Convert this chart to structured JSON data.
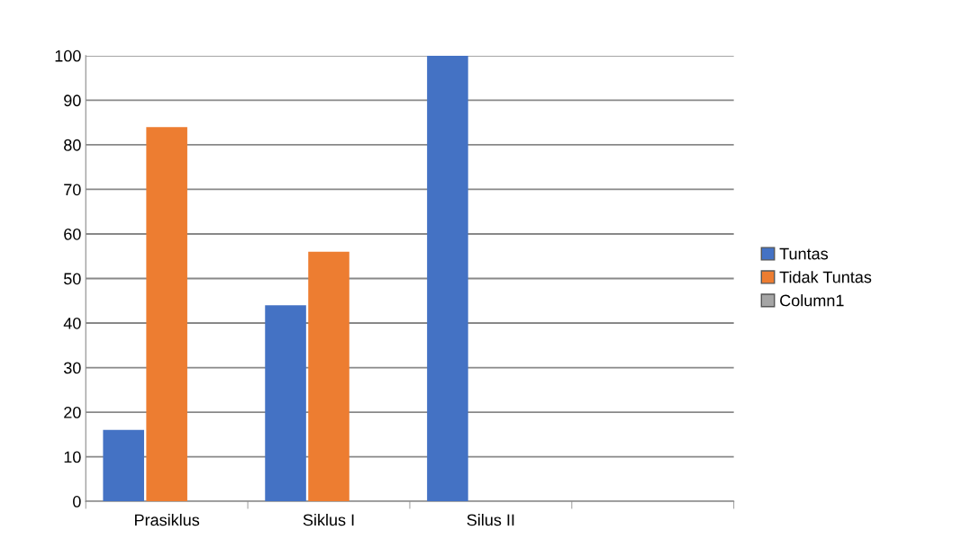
{
  "chart_data": {
    "type": "bar",
    "categories": [
      "Prasiklus",
      "Siklus I",
      "Silus II",
      null
    ],
    "series": [
      {
        "name": "Tuntas",
        "color": "#4472c4",
        "values": [
          16,
          44,
          100,
          null
        ]
      },
      {
        "name": "Tidak Tuntas",
        "color": "#ed7d31",
        "values": [
          84,
          56,
          0,
          null
        ]
      },
      {
        "name": "Column1",
        "color": "#a5a5a5",
        "values": [
          null,
          null,
          null,
          null
        ]
      }
    ],
    "ylim": [
      0,
      100
    ],
    "yticks": [
      0,
      10,
      20,
      30,
      40,
      50,
      60,
      70,
      80,
      90,
      100
    ],
    "grid": "y",
    "legend": "right"
  }
}
